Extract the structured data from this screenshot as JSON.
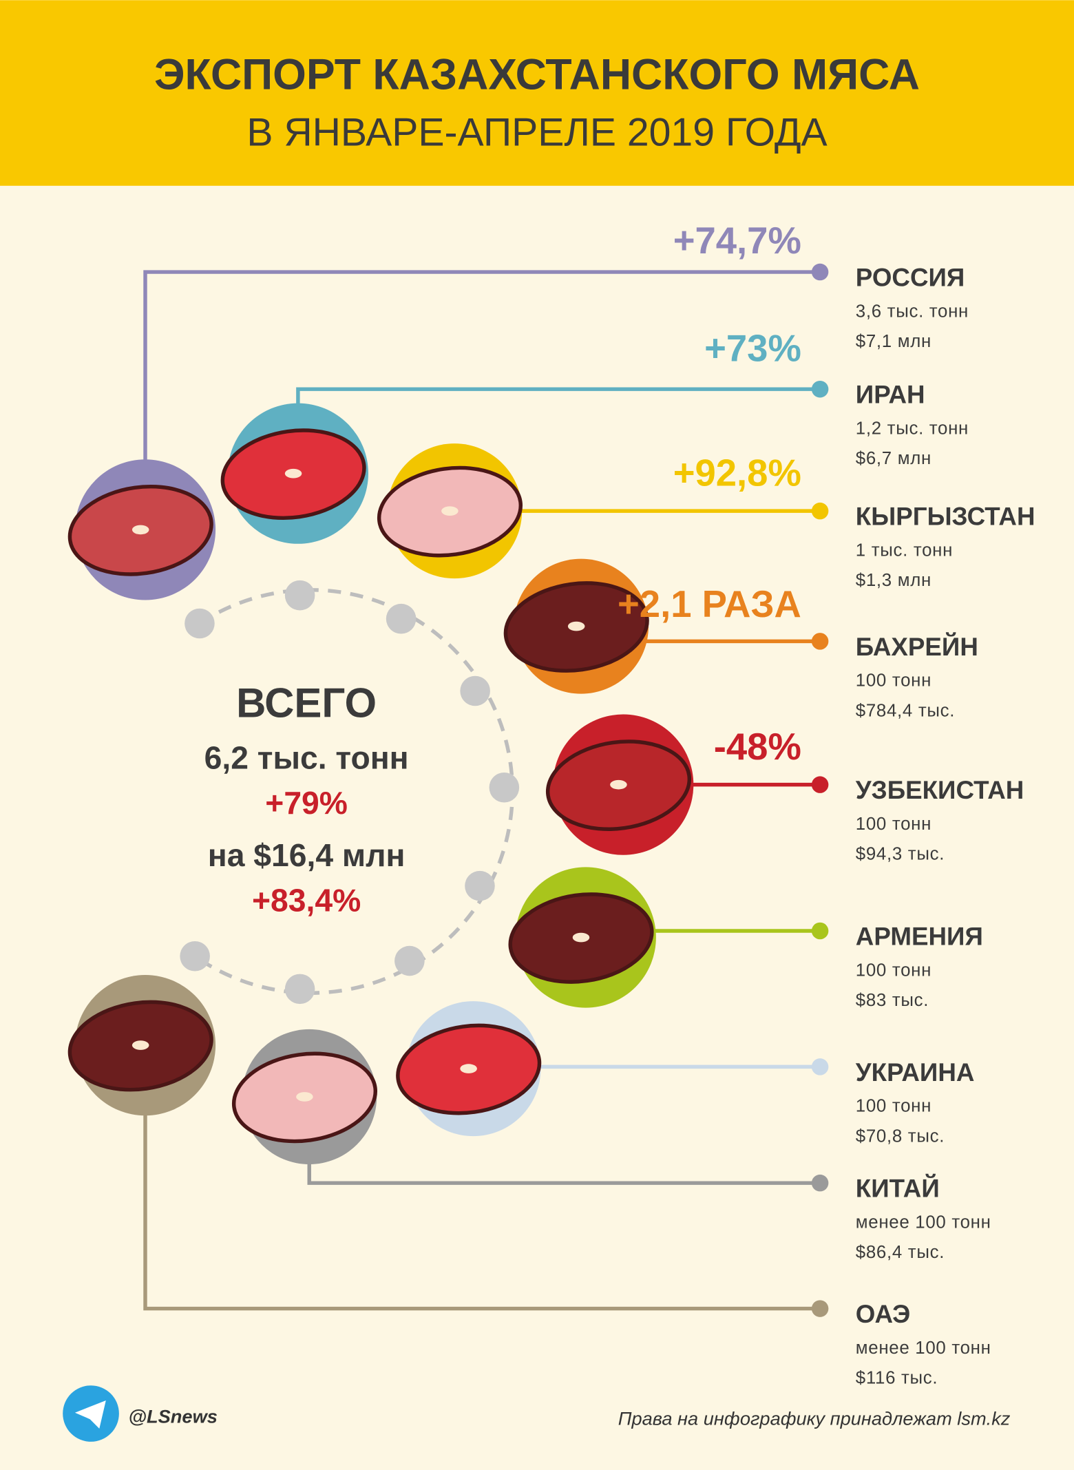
{
  "header": {
    "title": "ЭКСПОРТ КАЗАХСТАНСКОГО МЯСА",
    "subtitle": "В ЯНВАРЕ-АПРЕЛЕ 2019 ГОДА"
  },
  "countries": [
    {
      "name": "РОССИЯ",
      "change": "+74,7%",
      "volume": "3,6 тыс. тонн",
      "value": "$7,1 млн",
      "color": "#8f87b8"
    },
    {
      "name": "ИРАН",
      "change": "+73%",
      "volume": "1,2 тыс. тонн",
      "value": "$6,7 млн",
      "color": "#5fb0c2"
    },
    {
      "name": "КЫРГЫЗСТАН",
      "change": "+92,8%",
      "volume": "1 тыс. тонн",
      "value": "$1,3 млн",
      "color": "#f2c500"
    },
    {
      "name": "БАХРЕЙН",
      "change": "+2,1 РАЗА",
      "volume": "100 тонн",
      "value": "$784,4 тыс.",
      "color": "#e8821e"
    },
    {
      "name": "УЗБЕКИСТАН",
      "change": "-48%",
      "volume": "100 тонн",
      "value": "$94,3 тыс.",
      "color": "#c8202a"
    },
    {
      "name": "АРМЕНИЯ",
      "volume": "100 тонн",
      "value": "$83 тыс.",
      "color": "#a9c51c"
    },
    {
      "name": "УКРАИНА",
      "volume": "100 тонн",
      "value": "$70,8 тыс.",
      "color": "#c9d9e8"
    },
    {
      "name": "КИТАЙ",
      "volume": "менее 100 тонн",
      "value": "$86,4 тыс.",
      "color": "#9a9a9a"
    },
    {
      "name": "ОАЭ",
      "volume": "менее 100 тонн",
      "value": "$116 тыс.",
      "color": "#a8997a"
    }
  ],
  "total": {
    "label": "ВСЕГО",
    "volume": "6,2 тыс. тонн",
    "volume_change": "+79%",
    "value": "на $16,4 млн",
    "value_change": "+83,4%"
  },
  "footer": {
    "handle": "@LSnews",
    "credit": "Права на инфографику принадлежат lsm.kz"
  }
}
